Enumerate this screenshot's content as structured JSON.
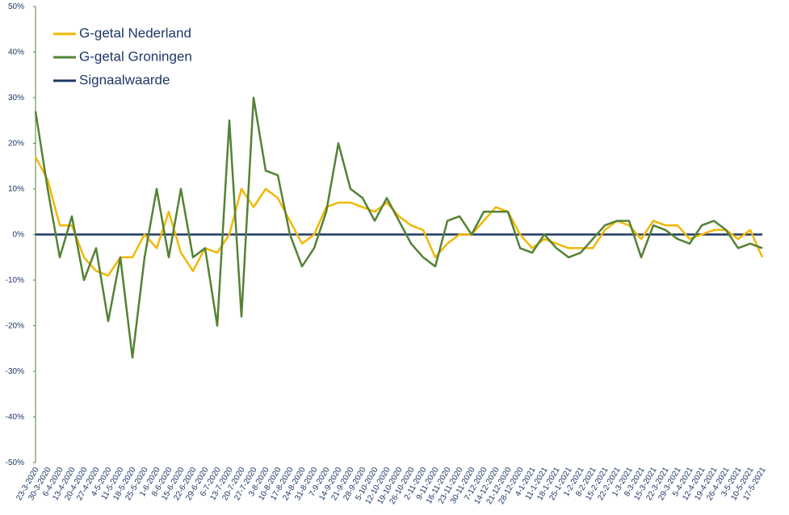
{
  "chart_data": {
    "type": "line",
    "categories": [
      "23-3-2020",
      "30-3-2020",
      "6-4-2020",
      "13-4-2020",
      "20-4-2020",
      "27-4-2020",
      "4-5-2020",
      "11-5-2020",
      "18-5-2020",
      "25-5-2020",
      "1-6-2020",
      "8-6-2020",
      "15-6-2020",
      "22-6-2020",
      "29-6-2020",
      "6-7-2020",
      "13-7-2020",
      "20-7-2020",
      "27-7-2020",
      "3-8-2020",
      "10-8-2020",
      "17-8-2020",
      "24-8-2020",
      "31-8-2020",
      "7-9-2020",
      "14-9-2020",
      "21-9-2020",
      "28-9-2020",
      "5-10-2020",
      "12-10-2020",
      "19-10-2020",
      "26-10-2020",
      "2-11-2020",
      "9-11-2020",
      "16-11-2020",
      "23-11-2020",
      "30-11-2020",
      "7-12-2020",
      "14-12-2020",
      "21-12-2020",
      "28-12-2020",
      "4-1-2021",
      "11-1-2021",
      "18-1-2021",
      "25-1-2021",
      "1-2-2021",
      "8-2-2021",
      "15-2-2021",
      "22-2-2021",
      "1-3-2021",
      "8-3-2021",
      "15-3-2021",
      "22-3-2021",
      "29-3-2021",
      "5-4-2021",
      "12-4-2021",
      "19-4-2021",
      "26-4-2021",
      "3-5-2021",
      "10-5-2021",
      "17-5-2021"
    ],
    "series": [
      {
        "name": "G-getal Nederland",
        "color": "#f2b705",
        "values": [
          17,
          12,
          2,
          2,
          -5,
          -8,
          -9,
          -5,
          -5,
          0,
          -3,
          5,
          -4,
          -8,
          -3,
          -4,
          0,
          10,
          6,
          10,
          8,
          3,
          -2,
          0,
          6,
          7,
          7,
          6,
          5,
          7,
          4,
          2,
          1,
          -5,
          -2,
          0,
          0,
          3,
          6,
          5,
          0,
          -3,
          -1,
          -2,
          -3,
          -3,
          -3,
          1,
          3,
          2,
          -1,
          3,
          2,
          2,
          -1,
          0,
          1,
          1,
          -1,
          1,
          -5
        ]
      },
      {
        "name": "G-getal Groningen",
        "color": "#548235",
        "values": [
          27,
          10,
          -5,
          4,
          -10,
          -3,
          -19,
          -5,
          -27,
          -5,
          10,
          -5,
          10,
          -5,
          -3,
          -20,
          25,
          -18,
          30,
          14,
          13,
          0,
          -7,
          -3,
          5,
          20,
          10,
          8,
          3,
          8,
          3,
          -2,
          -5,
          -7,
          3,
          4,
          0,
          5,
          5,
          5,
          -3,
          -4,
          0,
          -3,
          -5,
          -4,
          -1,
          2,
          3,
          3,
          -5,
          2,
          1,
          -1,
          -2,
          2,
          3,
          1,
          -3,
          -2,
          -3
        ]
      },
      {
        "name": "Signaalwaarde",
        "color": "#1f3864",
        "values": [
          0,
          0,
          0,
          0,
          0,
          0,
          0,
          0,
          0,
          0,
          0,
          0,
          0,
          0,
          0,
          0,
          0,
          0,
          0,
          0,
          0,
          0,
          0,
          0,
          0,
          0,
          0,
          0,
          0,
          0,
          0,
          0,
          0,
          0,
          0,
          0,
          0,
          0,
          0,
          0,
          0,
          0,
          0,
          0,
          0,
          0,
          0,
          0,
          0,
          0,
          0,
          0,
          0,
          0,
          0,
          0,
          0,
          0,
          0,
          0,
          0
        ]
      }
    ],
    "ylim": [
      -50,
      50
    ],
    "yticks": [
      {
        "value": -50,
        "label": "-50%"
      },
      {
        "value": -40,
        "label": "-40%"
      },
      {
        "value": -30,
        "label": "-30%"
      },
      {
        "value": -20,
        "label": "-20%"
      },
      {
        "value": -10,
        "label": "-10%"
      },
      {
        "value": 0,
        "label": "0%"
      },
      {
        "value": 10,
        "label": "10%"
      },
      {
        "value": 20,
        "label": "20%"
      },
      {
        "value": 30,
        "label": "30%"
      },
      {
        "value": 40,
        "label": "40%"
      },
      {
        "value": 50,
        "label": "50%"
      }
    ],
    "legend": "upper left"
  }
}
